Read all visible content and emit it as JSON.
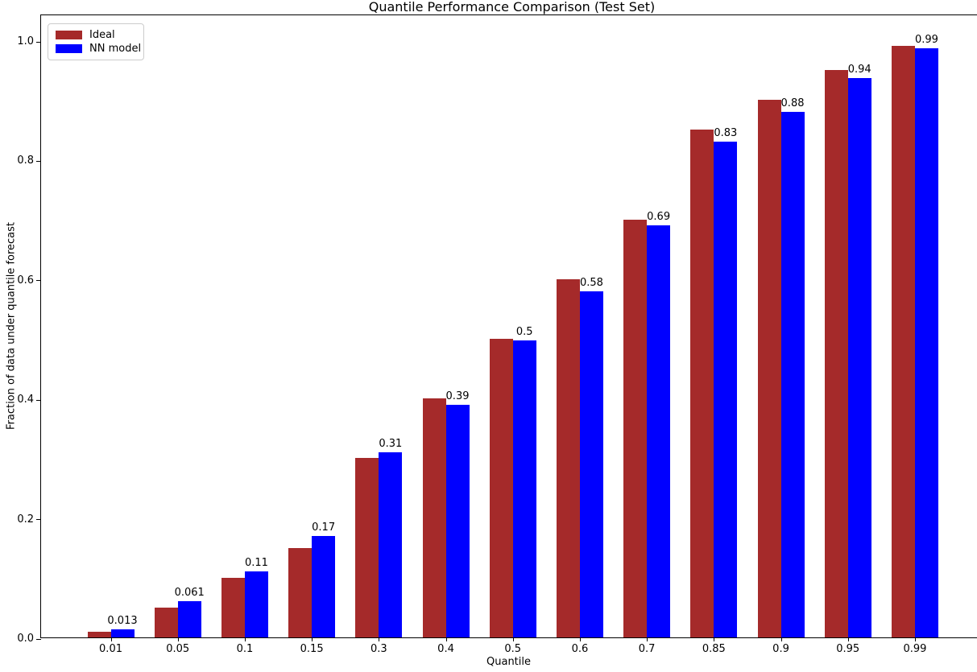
{
  "chart_data": {
    "type": "bar",
    "title": "Quantile Performance Comparison (Test Set)",
    "xlabel": "Quantile",
    "ylabel": "Fraction of data under quantile forecast",
    "categories": [
      "0.01",
      "0.05",
      "0.1",
      "0.15",
      "0.3",
      "0.4",
      "0.5",
      "0.6",
      "0.7",
      "0.85",
      "0.9",
      "0.95",
      "0.99"
    ],
    "series": [
      {
        "name": "Ideal",
        "color": "#A52A2A",
        "values": [
          0.01,
          0.05,
          0.1,
          0.15,
          0.3,
          0.4,
          0.5,
          0.6,
          0.7,
          0.85,
          0.9,
          0.95,
          0.99
        ]
      },
      {
        "name": "NN model",
        "color": "#0000FF",
        "values": [
          0.013,
          0.061,
          0.11,
          0.17,
          0.31,
          0.39,
          0.497,
          0.58,
          0.69,
          0.83,
          0.88,
          0.937,
          0.987
        ],
        "bar_labels": [
          "0.013",
          "0.061",
          "0.11",
          "0.17",
          "0.31",
          "0.39",
          "0.5",
          "0.58",
          "0.69",
          "0.83",
          "0.88",
          "0.94",
          "0.99"
        ]
      }
    ],
    "yticks": [
      "0.0",
      "0.2",
      "0.4",
      "0.6",
      "0.8",
      "1.0"
    ],
    "ylim": [
      0,
      1.045
    ],
    "grid": false,
    "legend_position": "upper left",
    "background_color": "#ffffff",
    "axis_color": "#000000"
  }
}
